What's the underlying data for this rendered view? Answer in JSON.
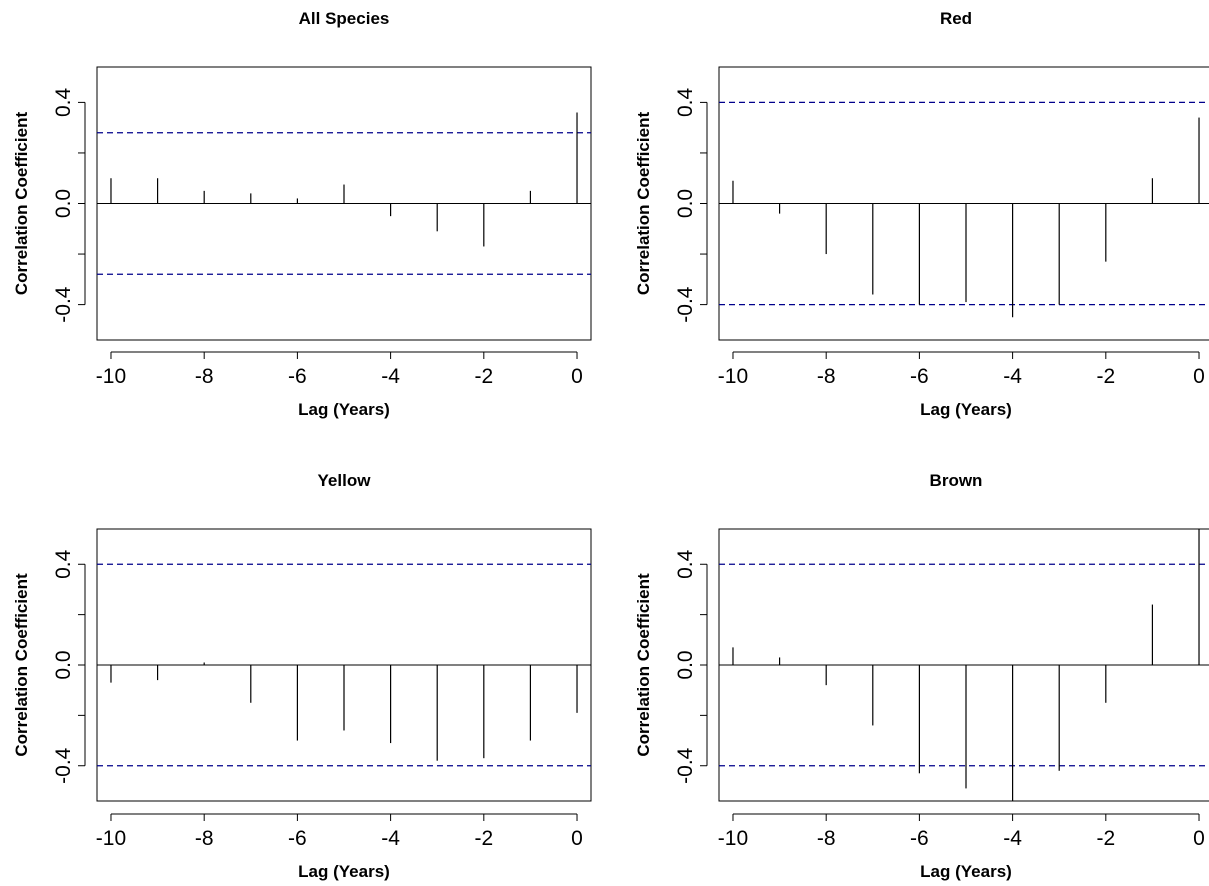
{
  "chart_data": [
    {
      "type": "bar",
      "title": "All Species",
      "xlabel": "Lag (Years)",
      "ylabel": "Correlation Coefficient",
      "x": [
        -10,
        -9,
        -8,
        -7,
        -6,
        -5,
        -4,
        -3,
        -2,
        -1,
        0
      ],
      "values": [
        0.1,
        0.1,
        0.05,
        0.04,
        0.02,
        0.075,
        -0.05,
        -0.11,
        -0.17,
        0.05,
        0.36
      ],
      "ci": 0.28,
      "xlim": [
        -10.3,
        0.3
      ],
      "ylim": [
        -0.54,
        0.54
      ],
      "xticks": [
        "-10",
        "-8",
        "-6",
        "-4",
        "-2",
        "0"
      ],
      "yticks": [
        "-0.4",
        "0.0",
        "0.4"
      ]
    },
    {
      "type": "bar",
      "title": "Red",
      "xlabel": "Lag (Years)",
      "ylabel": "Correlation Coefficient",
      "x": [
        -10,
        -9,
        -8,
        -7,
        -6,
        -5,
        -4,
        -3,
        -2,
        -1,
        0
      ],
      "values": [
        0.09,
        -0.04,
        -0.2,
        -0.36,
        -0.4,
        -0.39,
        -0.45,
        -0.4,
        -0.23,
        0.1,
        0.34
      ],
      "ci": 0.4,
      "xlim": [
        -10.3,
        0.3
      ],
      "ylim": [
        -0.54,
        0.54
      ],
      "xticks": [
        "-10",
        "-8",
        "-6",
        "-4",
        "-2",
        "0"
      ],
      "yticks": [
        "-0.4",
        "0.0",
        "0.4"
      ]
    },
    {
      "type": "bar",
      "title": "Yellow",
      "xlabel": "Lag (Years)",
      "ylabel": "Correlation Coefficient",
      "x": [
        -10,
        -9,
        -8,
        -7,
        -6,
        -5,
        -4,
        -3,
        -2,
        -1,
        0
      ],
      "values": [
        -0.07,
        -0.06,
        0.01,
        -0.15,
        -0.3,
        -0.26,
        -0.31,
        -0.38,
        -0.37,
        -0.3,
        -0.19
      ],
      "ci": 0.4,
      "xlim": [
        -10.3,
        0.3
      ],
      "ylim": [
        -0.54,
        0.54
      ],
      "xticks": [
        "-10",
        "-8",
        "-6",
        "-4",
        "-2",
        "0"
      ],
      "yticks": [
        "-0.4",
        "0.0",
        "0.4"
      ]
    },
    {
      "type": "bar",
      "title": "Brown",
      "xlabel": "Lag (Years)",
      "ylabel": "Correlation Coefficient",
      "x": [
        -10,
        -9,
        -8,
        -7,
        -6,
        -5,
        -4,
        -3,
        -2,
        -1,
        0
      ],
      "values": [
        0.07,
        0.03,
        -0.08,
        -0.24,
        -0.43,
        -0.49,
        -0.54,
        -0.42,
        -0.15,
        0.24,
        0.54
      ],
      "ci": 0.4,
      "xlim": [
        -10.3,
        0.3
      ],
      "ylim": [
        -0.54,
        0.54
      ],
      "xticks": [
        "-10",
        "-8",
        "-6",
        "-4",
        "-2",
        "0"
      ],
      "yticks": [
        "-0.4",
        "0.0",
        "0.4"
      ]
    }
  ],
  "colors": {
    "bar": "#000000",
    "ci_line": "#00008b",
    "axis": "#000000"
  }
}
